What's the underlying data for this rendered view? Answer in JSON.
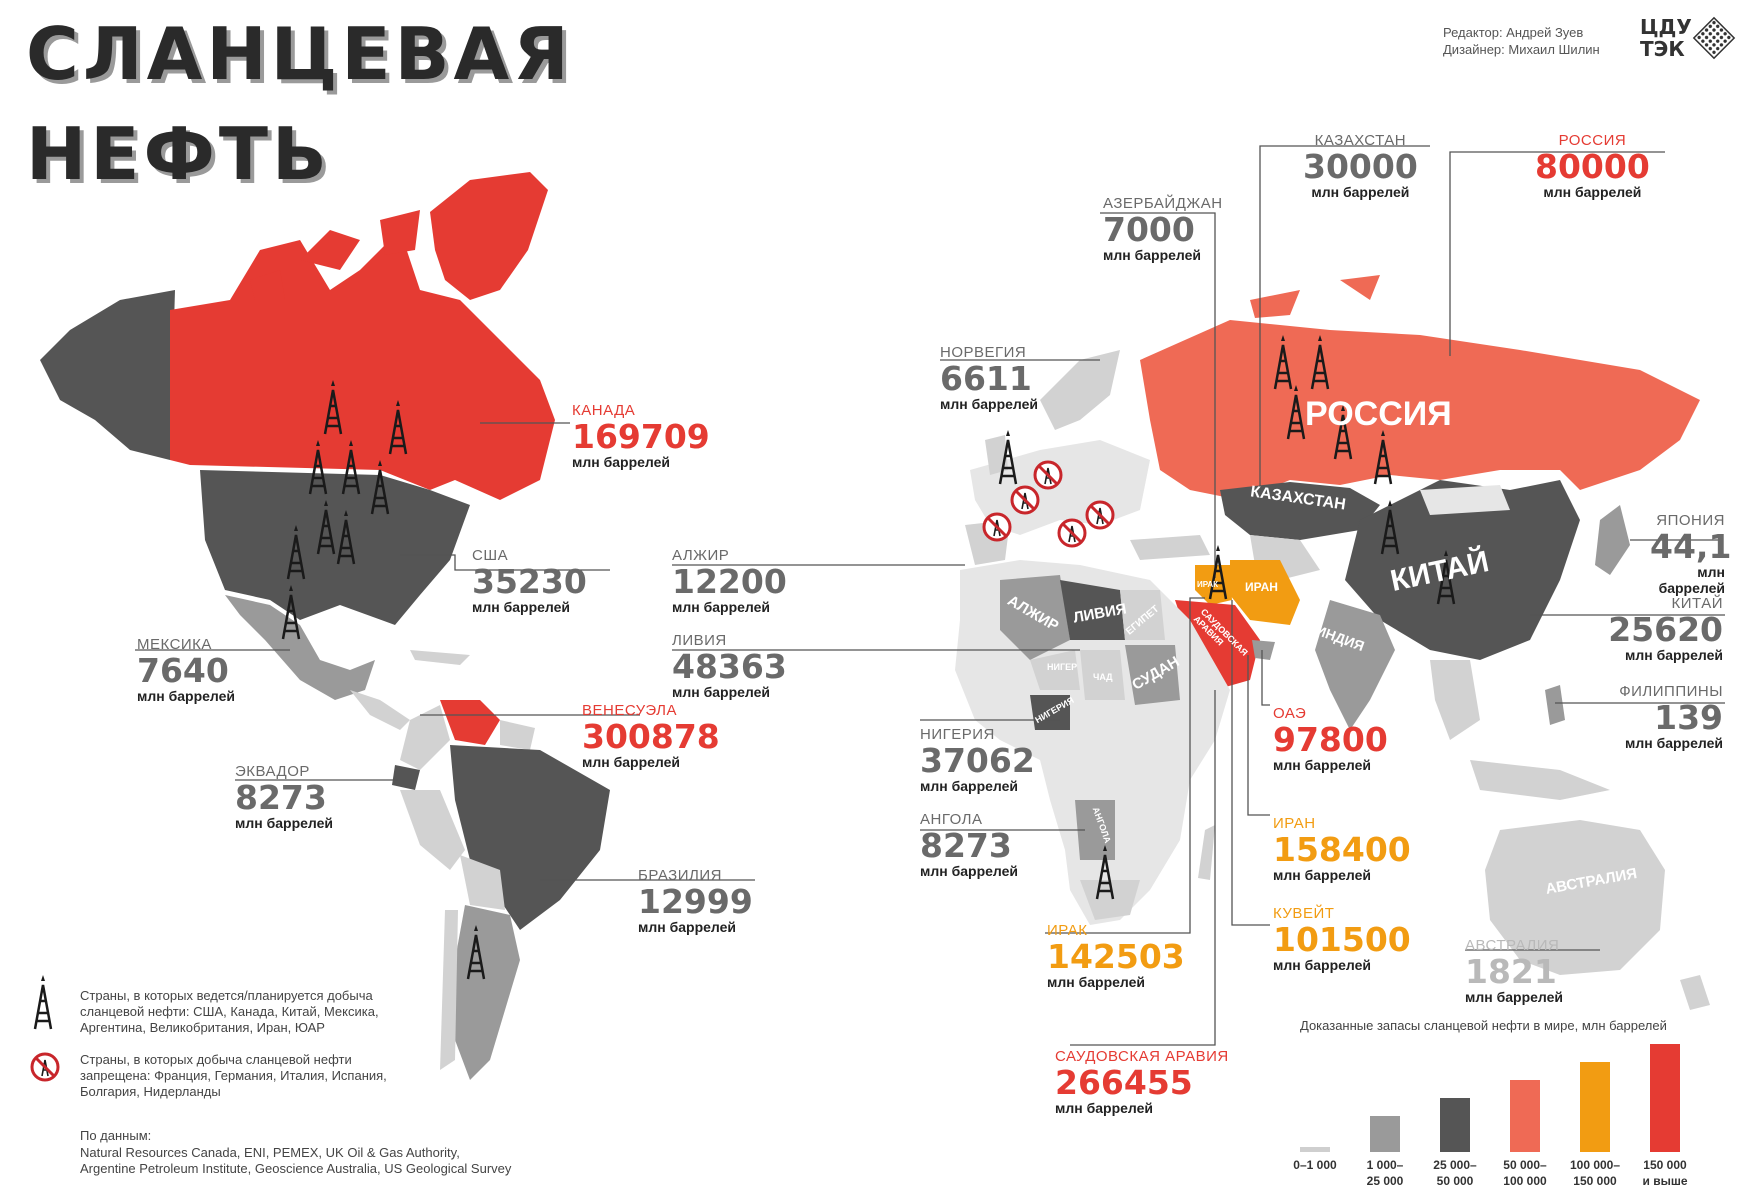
{
  "header": {
    "title_line1": "СЛАНЦЕВАЯ",
    "title_line2": "НЕФТЬ",
    "editor": "Редактор: Андрей Зуев",
    "designer": "Дизайнер: Михаил Шилин",
    "logo_line1": "ЦДУ",
    "logo_line2": "ТЭК"
  },
  "unit": "млн баррелей",
  "countries": {
    "canada": {
      "name": "КАНАДА",
      "value": "169709"
    },
    "usa": {
      "name": "США",
      "value": "35230"
    },
    "mexico": {
      "name": "МЕКСИКА",
      "value": "7640"
    },
    "venezuela": {
      "name": "ВЕНЕСУЭЛА",
      "value": "300878"
    },
    "ecuador": {
      "name": "ЭКВАДОР",
      "value": "8273"
    },
    "brazil": {
      "name": "БРАЗИЛИЯ",
      "value": "12999"
    },
    "algeria": {
      "name": "АЛЖИР",
      "value": "12200"
    },
    "libya": {
      "name": "ЛИВИЯ",
      "value": "48363"
    },
    "norway": {
      "name": "НОРВЕГИЯ",
      "value": "6611"
    },
    "azerbaijan": {
      "name": "АЗЕРБАЙДЖАН",
      "value": "7000"
    },
    "kazakhstan": {
      "name": "КАЗАХСТАН",
      "value": "30000"
    },
    "russia": {
      "name": "РОССИЯ",
      "value": "80000"
    },
    "nigeria": {
      "name": "НИГЕРИЯ",
      "value": "37062"
    },
    "angola": {
      "name": "АНГОЛА",
      "value": "8273"
    },
    "uae": {
      "name": "ОАЭ",
      "value": "97800"
    },
    "iran": {
      "name": "ИРАН",
      "value": "158400"
    },
    "kuwait": {
      "name": "КУВЕЙТ",
      "value": "101500"
    },
    "iraq": {
      "name": "ИРАК",
      "value": "142503"
    },
    "saudi": {
      "name": "САУДОВСКАЯ АРАВИЯ",
      "value": "266455"
    },
    "japan": {
      "name": "ЯПОНИЯ",
      "value": "44,1"
    },
    "china": {
      "name": "КИТАЙ",
      "value": "25620"
    },
    "philippines": {
      "name": "ФИЛИППИНЫ",
      "value": "139"
    },
    "australia": {
      "name": "АВСТРАЛИЯ",
      "value": "1821"
    }
  },
  "map_labels": {
    "russia": "РОССИЯ",
    "kazakhstan": "КАЗАХСТАН",
    "china": "КИТАЙ",
    "india": "ИНДИЯ",
    "algeria": "АЛЖИР",
    "libya": "ЛИВИЯ",
    "egypt": "ЕГИПЕТ",
    "sudan": "СУДАН",
    "niger": "НИГЕР",
    "chad": "ЧАД",
    "nigeria": "НИГЕРИЯ",
    "angola": "АНГОЛА",
    "saudi": "САУДОВСКАЯ АРАВИЯ",
    "iran": "ИРАН",
    "iraq": "ИРАК",
    "australia": "АВСТРАЛИЯ"
  },
  "legend": {
    "production_text": "Страны, в которых ведется/планируется добыча сланцевой нефти: США, Канада, Китай, Мексика, Аргентина, Великобритания, Иран, ЮАР",
    "banned_text": "Страны, в которых добыча сланцевой нефти запрещена: Франция, Германия, Италия, Испания, Болгария, Нидерланды",
    "sources_title": "По данным:",
    "sources_line1": "Natural Resources Canada, ENI, PEMEX, UK Oil & Gas Authority,",
    "sources_line2": "Argentine Petroleum Institute, Geoscience Australia, US Geological Survey"
  },
  "colors": {
    "red": "#e53b33",
    "salmon": "#ef6a55",
    "orange": "#f29c12",
    "dark_gray": "#555555",
    "mid_gray": "#9a9a9a",
    "light_gray": "#d2d2d2",
    "very_light_gray": "#e6e6e6"
  },
  "chart_data": {
    "type": "bar",
    "title": "Доказанные запасы сланцевой нефти в мире, млн баррелей",
    "categories": [
      "0–1 000",
      "1 000–\n25 000",
      "25 000–\n50 000",
      "50 000–\n100 000",
      "100 000–\n150 000",
      "150 000\nи выше"
    ],
    "values": [
      1,
      2,
      3,
      4,
      5,
      6
    ],
    "colors": [
      "#cfcfcf",
      "#9a9a9a",
      "#555555",
      "#ef6a55",
      "#f29c12",
      "#e53b33"
    ]
  }
}
